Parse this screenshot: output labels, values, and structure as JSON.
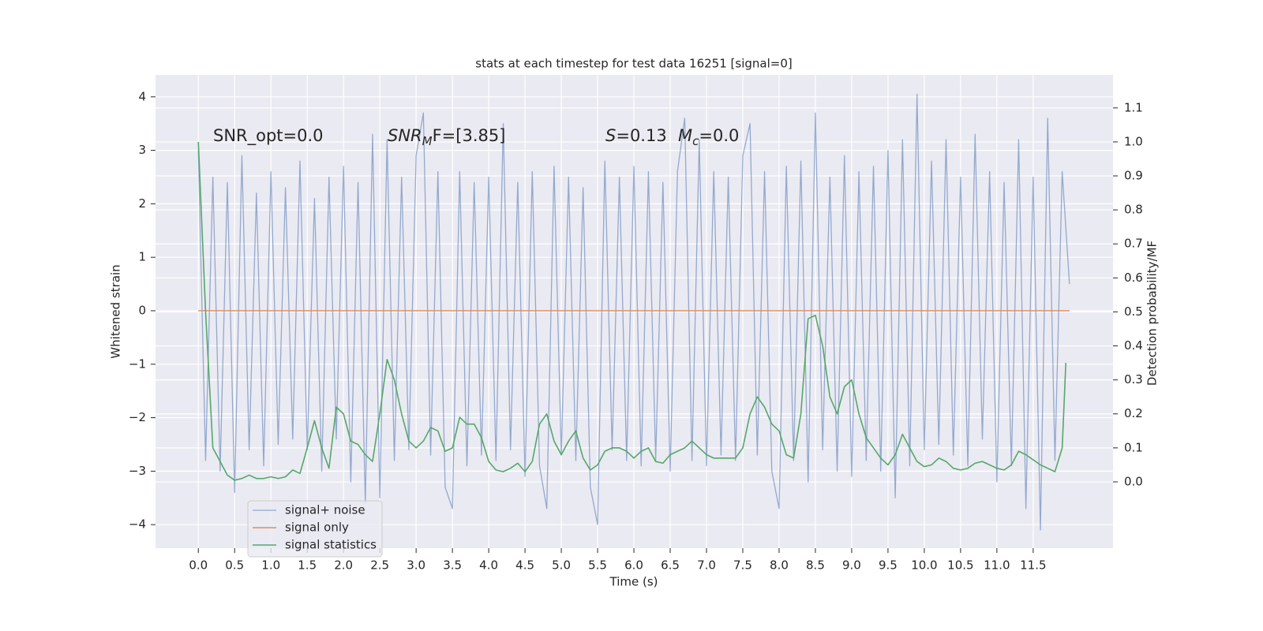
{
  "chart_data": {
    "type": "line",
    "title": "stats at each timestep for test data 16251 [signal=0]",
    "xlabel": "Time (s)",
    "ylabel": "Whitened strain",
    "y2label": "Detection probability/MF",
    "annotations": [
      "SNR_opt=0.0",
      {
        "main": "SNR",
        "sub": "M",
        "tail": "F=[3.85]"
      },
      {
        "main": "S",
        "tail": "=0.13"
      },
      {
        "main": "M",
        "sub": "c",
        "tail": "=0.0"
      }
    ],
    "grid": true,
    "legend": "lower left",
    "xlim": [
      -0.59,
      12.6
    ],
    "ylim": [
      -4.44,
      4.41
    ],
    "y2lim": [
      -0.195,
      1.197
    ],
    "xticks": [
      {
        "value": 0,
        "label": "0.0"
      },
      0.5,
      {
        "value": 1,
        "label": "1.0"
      },
      1.5,
      {
        "value": 2,
        "label": "2.0"
      },
      2.5,
      {
        "value": 3,
        "label": "3.0"
      },
      3.5,
      {
        "value": 4,
        "label": "4.0"
      },
      4.5,
      {
        "value": 5,
        "label": "5.0"
      },
      5.5,
      {
        "value": 6,
        "label": "6.0"
      },
      6.5,
      {
        "value": 7,
        "label": "7.0"
      },
      7.5,
      {
        "value": 8,
        "label": "8.0"
      },
      8.5,
      {
        "value": 9,
        "label": "9.0"
      },
      9.5,
      {
        "value": 10,
        "label": "10.0"
      },
      10.5,
      {
        "value": 11,
        "label": "11.0"
      },
      11.5
    ],
    "yticks": [
      {
        "value": -4,
        "label": "−4"
      },
      {
        "value": -3,
        "label": "−3"
      },
      {
        "value": -2,
        "label": "−2"
      },
      {
        "value": -1,
        "label": "−1"
      },
      0,
      1,
      2,
      3,
      4
    ],
    "y2ticks": [
      {
        "value": 0,
        "label": "0.0"
      },
      0.1,
      0.2,
      0.3,
      0.4,
      0.5,
      0.6,
      0.7,
      0.8,
      0.9,
      {
        "value": 1,
        "label": "1.0"
      },
      1.1
    ],
    "series": [
      {
        "name": "signal+ noise",
        "color": "#4c72b0",
        "axis": "y",
        "x": [
          0,
          0.1,
          0.2,
          0.3,
          0.4,
          0.5,
          0.6,
          0.7,
          0.8,
          0.9,
          1,
          1.1,
          1.2,
          1.3,
          1.4,
          1.5,
          1.6,
          1.7,
          1.8,
          1.9,
          2,
          2.1,
          2.2,
          2.3,
          2.4,
          2.5,
          2.6,
          2.7,
          2.8,
          2.9,
          3,
          3.1,
          3.2,
          3.3,
          3.4,
          3.5,
          3.6,
          3.7,
          3.8,
          3.9,
          4,
          4.1,
          4.2,
          4.3,
          4.4,
          4.5,
          4.6,
          4.7,
          4.8,
          4.9,
          5,
          5.1,
          5.2,
          5.3,
          5.4,
          5.5,
          5.6,
          5.7,
          5.8,
          5.9,
          6,
          6.1,
          6.2,
          6.3,
          6.4,
          6.5,
          6.6,
          6.7,
          6.8,
          6.9,
          7,
          7.1,
          7.2,
          7.3,
          7.4,
          7.5,
          7.6,
          7.7,
          7.8,
          7.9,
          8,
          8.1,
          8.2,
          8.3,
          8.4,
          8.5,
          8.6,
          8.7,
          8.8,
          8.9,
          9,
          9.1,
          9.2,
          9.3,
          9.4,
          9.5,
          9.6,
          9.7,
          9.8,
          9.9,
          10,
          10.1,
          10.2,
          10.3,
          10.4,
          10.5,
          10.6,
          10.7,
          10.8,
          10.9,
          11,
          11.1,
          11.2,
          11.3,
          11.4,
          11.5,
          11.6,
          11.7,
          11.8,
          11.9,
          12
        ],
        "values": [
          3.0,
          -2.8,
          2.5,
          -3.0,
          2.4,
          -3.4,
          2.9,
          -2.6,
          2.2,
          -2.9,
          2.6,
          -2.5,
          2.3,
          -2.4,
          2.8,
          -2.6,
          2.1,
          -3.0,
          2.5,
          -2.4,
          2.7,
          -3.2,
          2.4,
          -3.6,
          3.3,
          -3.5,
          3.2,
          -2.8,
          2.5,
          -2.6,
          2.9,
          3.7,
          -2.7,
          2.6,
          -3.3,
          -3.7,
          2.6,
          -2.9,
          2.4,
          -2.7,
          2.5,
          -2.8,
          3.5,
          -2.6,
          2.4,
          -3.1,
          2.6,
          -2.9,
          -3.7,
          2.7,
          -2.7,
          2.5,
          -2.8,
          2.3,
          -3.3,
          -4.0,
          2.8,
          -2.6,
          2.5,
          -2.8,
          2.7,
          -2.9,
          2.6,
          -2.8,
          2.4,
          -3.0,
          2.6,
          3.6,
          -2.8,
          3.2,
          -2.9,
          2.6,
          -2.7,
          2.5,
          -2.8,
          2.9,
          3.5,
          -2.7,
          2.6,
          -3.0,
          -3.7,
          2.7,
          -2.8,
          2.8,
          -3.2,
          3.7,
          -2.6,
          2.5,
          -3.0,
          2.9,
          -3.1,
          2.6,
          -2.8,
          2.7,
          -3.0,
          3.0,
          -3.5,
          3.2,
          -2.9,
          4.05,
          -2.6,
          2.8,
          -2.5,
          3.2,
          -2.7,
          2.5,
          -2.9,
          3.3,
          -2.4,
          2.6,
          -3.2,
          2.4,
          -2.9,
          3.2,
          -3.7,
          2.5,
          -4.1,
          3.6,
          -2.8,
          2.6,
          0.5
        ]
      },
      {
        "name": "signal only",
        "color": "#dd8452",
        "axis": "y",
        "x": [
          0,
          12
        ],
        "values": [
          0,
          0
        ]
      },
      {
        "name": "signal statistics",
        "color": "#55a868",
        "axis": "y2",
        "x": [
          0,
          0.1,
          0.2,
          0.3,
          0.4,
          0.5,
          0.6,
          0.7,
          0.8,
          0.9,
          1,
          1.1,
          1.2,
          1.3,
          1.4,
          1.5,
          1.6,
          1.7,
          1.8,
          1.9,
          2,
          2.1,
          2.2,
          2.3,
          2.4,
          2.5,
          2.6,
          2.7,
          2.8,
          2.9,
          3,
          3.1,
          3.2,
          3.3,
          3.4,
          3.5,
          3.6,
          3.7,
          3.8,
          3.9,
          4,
          4.1,
          4.2,
          4.3,
          4.4,
          4.5,
          4.6,
          4.7,
          4.8,
          4.9,
          5,
          5.1,
          5.2,
          5.3,
          5.4,
          5.5,
          5.6,
          5.7,
          5.8,
          5.9,
          6,
          6.1,
          6.2,
          6.3,
          6.4,
          6.5,
          6.6,
          6.7,
          6.8,
          6.9,
          7,
          7.1,
          7.2,
          7.3,
          7.4,
          7.5,
          7.6,
          7.7,
          7.8,
          7.9,
          8,
          8.1,
          8.2,
          8.3,
          8.4,
          8.5,
          8.6,
          8.7,
          8.8,
          8.9,
          9,
          9.1,
          9.2,
          9.3,
          9.4,
          9.5,
          9.6,
          9.7,
          9.8,
          9.9,
          10,
          10.1,
          10.2,
          10.3,
          10.4,
          10.5,
          10.6,
          10.7,
          10.8,
          10.9,
          11,
          11.1,
          11.2,
          11.3,
          11.4,
          11.5,
          11.6,
          11.7,
          11.8,
          11.9,
          11.95
        ],
        "values": [
          1.0,
          0.5,
          0.1,
          0.06,
          0.02,
          0.005,
          0.01,
          0.02,
          0.01,
          0.01,
          0.015,
          0.01,
          0.015,
          0.035,
          0.025,
          0.1,
          0.18,
          0.1,
          0.04,
          0.22,
          0.2,
          0.12,
          0.11,
          0.08,
          0.06,
          0.2,
          0.36,
          0.3,
          0.2,
          0.12,
          0.1,
          0.12,
          0.16,
          0.15,
          0.09,
          0.1,
          0.19,
          0.17,
          0.17,
          0.13,
          0.06,
          0.035,
          0.03,
          0.04,
          0.055,
          0.03,
          0.06,
          0.17,
          0.2,
          0.12,
          0.08,
          0.12,
          0.15,
          0.07,
          0.035,
          0.05,
          0.09,
          0.1,
          0.1,
          0.09,
          0.07,
          0.09,
          0.1,
          0.06,
          0.055,
          0.08,
          0.09,
          0.1,
          0.12,
          0.1,
          0.08,
          0.07,
          0.07,
          0.07,
          0.07,
          0.1,
          0.2,
          0.25,
          0.22,
          0.17,
          0.15,
          0.08,
          0.07,
          0.2,
          0.48,
          0.49,
          0.4,
          0.25,
          0.2,
          0.28,
          0.3,
          0.2,
          0.13,
          0.1,
          0.07,
          0.05,
          0.08,
          0.14,
          0.1,
          0.06,
          0.045,
          0.05,
          0.07,
          0.06,
          0.04,
          0.035,
          0.04,
          0.055,
          0.06,
          0.05,
          0.04,
          0.035,
          0.05,
          0.09,
          0.08,
          0.065,
          0.05,
          0.04,
          0.03,
          0.1,
          0.35
        ]
      }
    ]
  }
}
